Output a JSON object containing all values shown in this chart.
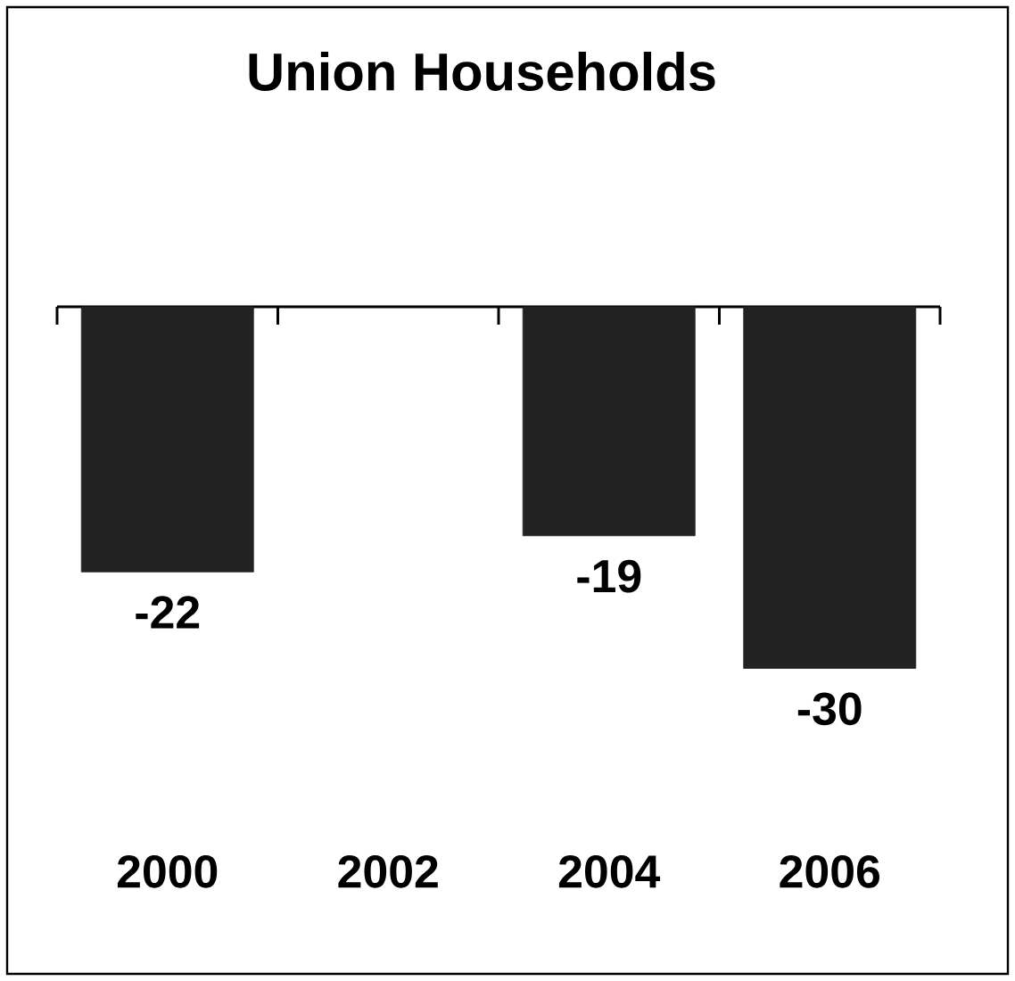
{
  "chart_data": {
    "type": "bar",
    "title": "Union Households",
    "categories": [
      "2000",
      "2002",
      "2004",
      "2006"
    ],
    "values": [
      -22,
      null,
      -19,
      -30
    ],
    "color": "#222222",
    "data_labels": true
  }
}
